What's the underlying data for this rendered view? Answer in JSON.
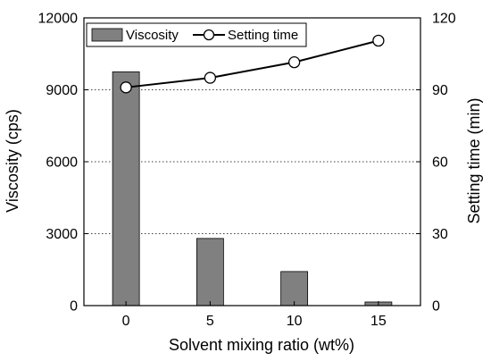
{
  "chart_data": {
    "type": "bar+line",
    "categories": [
      "0",
      "5",
      "10",
      "15"
    ],
    "xlabel": "Solvent mixing ratio (wt%)",
    "series": [
      {
        "name": "Viscosity",
        "type": "bar",
        "axis": "left",
        "values": [
          9750,
          2800,
          1420,
          150
        ],
        "color": "#808080"
      },
      {
        "name": "Setting time",
        "type": "line",
        "axis": "right",
        "values": [
          91,
          95,
          101.5,
          110.5
        ],
        "color": "#000000"
      }
    ],
    "y_left": {
      "label": "Viscosity (cps)",
      "range": [
        0,
        12000
      ],
      "ticks": [
        "0",
        "3000",
        "6000",
        "9000",
        "12000"
      ]
    },
    "y_right": {
      "label": "Setting time (min)",
      "range": [
        0,
        120
      ],
      "ticks": [
        "0",
        "30",
        "60",
        "90",
        "120"
      ]
    },
    "grid": "horizontal dotted",
    "legend_position": "top-left"
  }
}
